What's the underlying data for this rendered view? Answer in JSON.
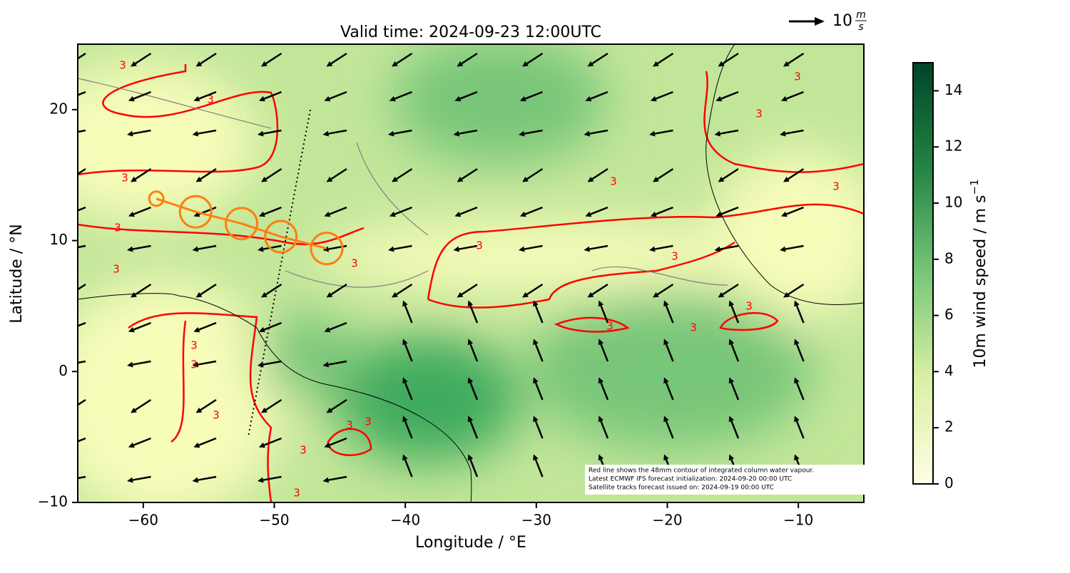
{
  "chart_data": {
    "type": "map",
    "title": "Valid time: 2024-09-23 12:00UTC",
    "x_label": "Longitude / °E",
    "y_label": "Latitude / °N",
    "xlim": [
      -65,
      -5
    ],
    "ylim": [
      -10,
      25
    ],
    "xticks": [
      {
        "value": -60,
        "label": "−60"
      },
      {
        "value": -50,
        "label": "−50"
      },
      {
        "value": -40,
        "label": "−40"
      },
      {
        "value": -30,
        "label": "−30"
      },
      {
        "value": -20,
        "label": "−20"
      },
      {
        "value": -10,
        "label": "−10"
      }
    ],
    "yticks": [
      {
        "value": -10,
        "label": "−10"
      },
      0,
      10,
      20
    ],
    "colorbar": {
      "label": "10m wind speed / m s",
      "label_sup": "−1",
      "lim": [
        0,
        15
      ],
      "ticks": [
        0,
        2,
        4,
        6,
        8,
        10,
        12,
        14
      ],
      "colors": [
        "#ffffe5",
        "#d9f0a3",
        "#78c679",
        "#238443",
        "#004529"
      ]
    },
    "key": {
      "value": 10,
      "unit_num": "m",
      "unit_den": "s"
    },
    "contour_label": "3",
    "contour_color": "#ff0000",
    "track": {
      "color": "#ff7f0e",
      "x": [
        -59,
        -56,
        -52.5,
        -49.5,
        -46
      ],
      "y": [
        13.2,
        12.2,
        11.3,
        10.3,
        9.4
      ]
    },
    "notes": [
      "Red line shows the 48mm contour of integrated column water vapour.",
      "Latest ECMWF IFS forecast initialization: 2024-09-20 00:00 UTC",
      "Satellite tracks forecast issued on: 2024-09-19 00:00 UTC"
    ]
  }
}
